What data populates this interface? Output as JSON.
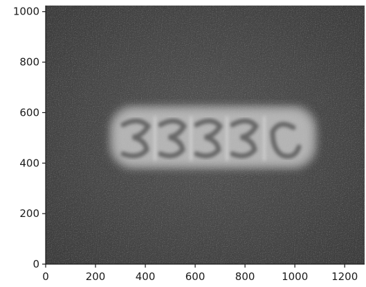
{
  "figure": {
    "x_ticks": [
      "0",
      "200",
      "400",
      "600",
      "800",
      "1000",
      "1200"
    ],
    "y_ticks": [
      "0",
      "200",
      "400",
      "600",
      "800",
      "1000"
    ],
    "xlim": [
      0,
      1280
    ],
    "ylim": [
      0,
      1024
    ],
    "image_content": "fluorescent-cell-cluster-image",
    "colors": {
      "background": "#4a4a4a",
      "glow": "#dcdcdc",
      "axis": "#1a1a1a"
    }
  }
}
